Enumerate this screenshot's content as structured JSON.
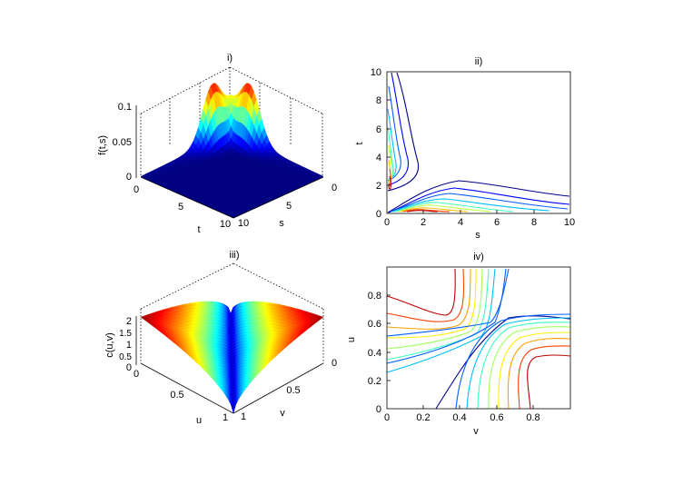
{
  "chart_data": [
    {
      "type": "surface",
      "title": "i)",
      "xlabel": "t",
      "ylabel": "s",
      "zlabel": "f(t,s)",
      "xlim": [
        0,
        10
      ],
      "ylim": [
        0,
        10
      ],
      "zlim": [
        0,
        0.1
      ],
      "xticks": [
        "0",
        "5",
        "10"
      ],
      "yticks": [
        "0",
        "5",
        "10"
      ],
      "zticks": [
        "0",
        "0.05",
        "0.1"
      ],
      "peak_value": 0.09,
      "peak_locations": [
        {
          "t": 0.4,
          "s": 2.0
        },
        {
          "t": 2.0,
          "s": 0.4
        }
      ],
      "colormap": "jet"
    },
    {
      "type": "contour",
      "title": "ii)",
      "xlabel": "s",
      "ylabel": "t",
      "xlim": [
        0,
        10
      ],
      "ylim": [
        0,
        10
      ],
      "xticks": [
        "0",
        "2",
        "4",
        "6",
        "8",
        "10"
      ],
      "yticks": [
        "0",
        "2",
        "4",
        "6",
        "8",
        "10"
      ],
      "colormap": "jet",
      "levels": 10
    },
    {
      "type": "surface",
      "title": "iii)",
      "xlabel": "u",
      "ylabel": "v",
      "zlabel": "c(u,v)",
      "xlim": [
        0,
        1
      ],
      "ylim": [
        0,
        1
      ],
      "zlim": [
        0,
        2
      ],
      "xticks": [
        "0",
        "0.5",
        "1"
      ],
      "yticks": [
        "0",
        "0.5",
        "1"
      ],
      "zticks": [
        "0",
        "1",
        "2"
      ],
      "zticks_minor": [
        "0.5",
        "1.5"
      ],
      "colormap": "jet"
    },
    {
      "type": "contour",
      "title": "iv)",
      "xlabel": "v",
      "ylabel": "u",
      "xlim": [
        0,
        1
      ],
      "ylim": [
        0,
        1
      ],
      "xticks": [
        "0",
        "0.2",
        "0.4",
        "0.6",
        "0.8"
      ],
      "yticks": [
        "0",
        "0.2",
        "0.4",
        "0.6",
        "0.8"
      ],
      "colormap": "jet",
      "levels": 10
    }
  ]
}
